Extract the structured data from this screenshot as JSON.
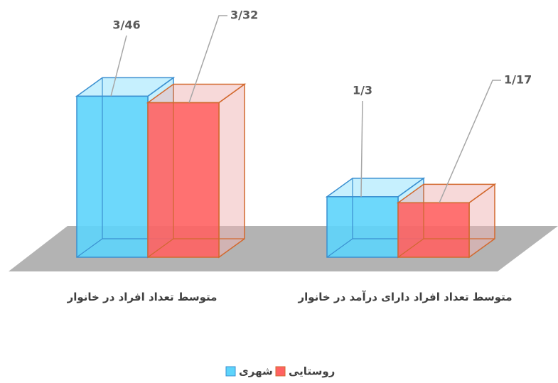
{
  "chart_data": {
    "type": "bar3d",
    "categories": [
      "متوسط تعداد افراد در خانوار",
      "متوسط تعداد افراد دارای درآمد در خانوار"
    ],
    "series": [
      {
        "name": "شهری",
        "color": "#5dd4fb",
        "values": [
          3.46,
          1.3
        ],
        "value_labels": [
          "3/46",
          "1/3"
        ]
      },
      {
        "name": "روستایی",
        "color": "#ff6262",
        "values": [
          3.32,
          1.17
        ],
        "value_labels": [
          "3/32",
          "1/17"
        ]
      }
    ]
  }
}
